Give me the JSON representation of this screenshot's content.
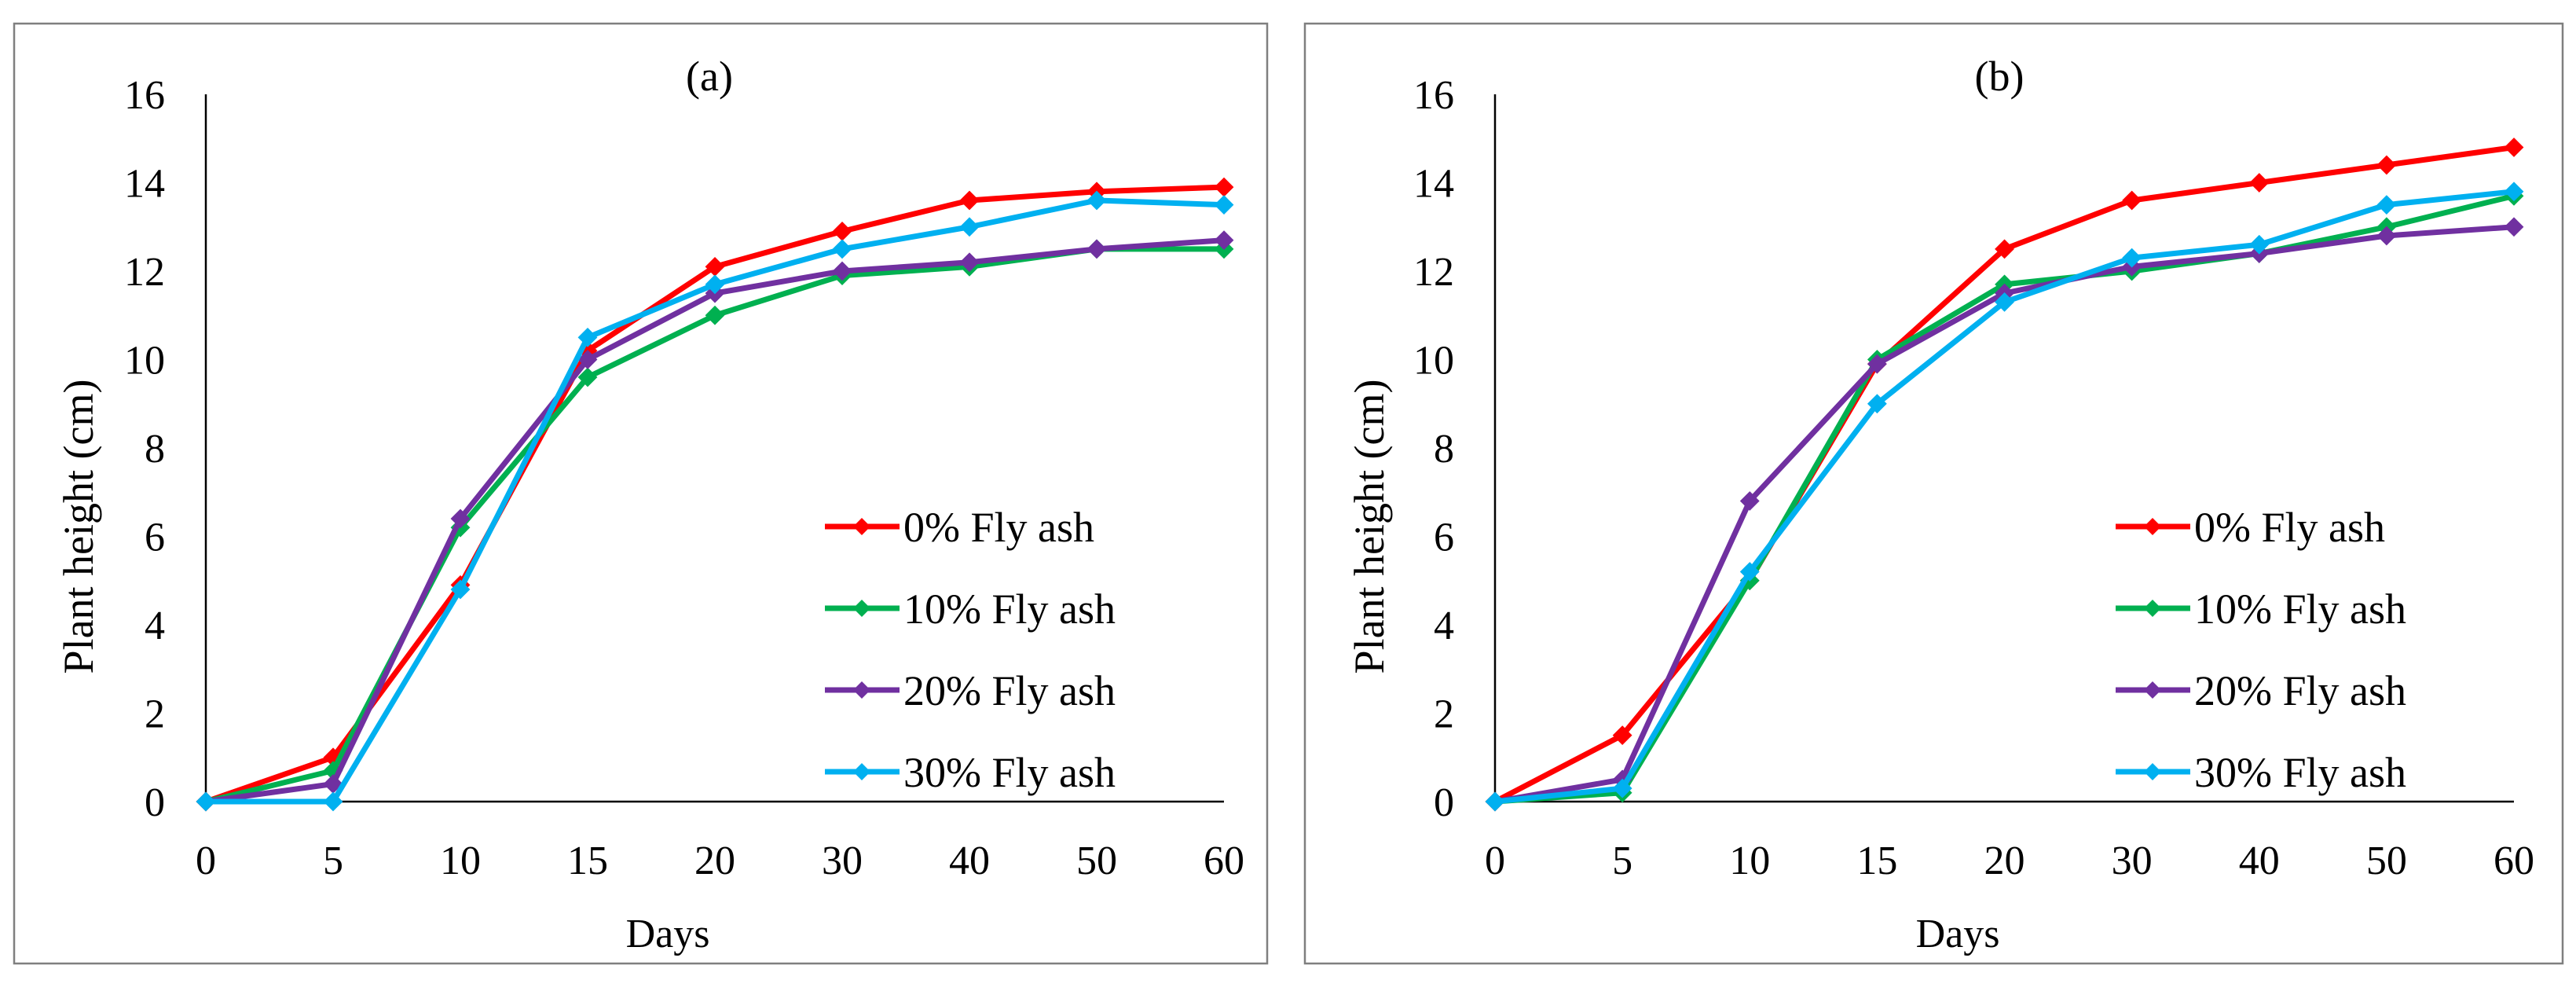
{
  "figure": {
    "panels": [
      {
        "label": "(a)"
      },
      {
        "label": "(b)"
      }
    ]
  },
  "chart_data": [
    {
      "type": "line",
      "title": "(a)",
      "xlabel": "Days",
      "ylabel": "Plant height (cm)",
      "categories": [
        "0",
        "5",
        "10",
        "15",
        "20",
        "30",
        "40",
        "50",
        "60"
      ],
      "ylim": [
        0,
        16
      ],
      "yticks": [
        0,
        2,
        4,
        6,
        8,
        10,
        12,
        14,
        16
      ],
      "grid": false,
      "legend_position": "bottom-right",
      "marker": "diamond",
      "series": [
        {
          "name": "0% Fly ash",
          "color": "#ff0000",
          "values": [
            0,
            1.0,
            4.9,
            10.2,
            12.1,
            12.9,
            13.6,
            13.8,
            13.9
          ]
        },
        {
          "name": "10% Fly ash",
          "color": "#00b050",
          "values": [
            0,
            0.7,
            6.2,
            9.6,
            11.0,
            11.9,
            12.1,
            12.5,
            12.5
          ]
        },
        {
          "name": "20% Fly ash",
          "color": "#7030a0",
          "values": [
            0,
            0.4,
            6.4,
            10.0,
            11.5,
            12.0,
            12.2,
            12.5,
            12.7
          ]
        },
        {
          "name": "30% Fly ash",
          "color": "#00b0f0",
          "values": [
            0,
            0.0,
            4.8,
            10.5,
            11.7,
            12.5,
            13.0,
            13.6,
            13.5
          ]
        }
      ]
    },
    {
      "type": "line",
      "title": "(b)",
      "xlabel": "Days",
      "ylabel": "Plant height (cm)",
      "categories": [
        "0",
        "5",
        "10",
        "15",
        "20",
        "30",
        "40",
        "50",
        "60"
      ],
      "ylim": [
        0,
        16
      ],
      "yticks": [
        0,
        2,
        4,
        6,
        8,
        10,
        12,
        14,
        16
      ],
      "grid": false,
      "legend_position": "bottom-right",
      "marker": "diamond",
      "series": [
        {
          "name": "0% Fly ash",
          "color": "#ff0000",
          "values": [
            0,
            1.5,
            5.0,
            9.9,
            12.5,
            13.6,
            14.0,
            14.4,
            14.8
          ]
        },
        {
          "name": "10% Fly ash",
          "color": "#00b050",
          "values": [
            0,
            0.2,
            5.0,
            10.0,
            11.7,
            12.0,
            12.4,
            13.0,
            13.7
          ]
        },
        {
          "name": "20% Fly ash",
          "color": "#7030a0",
          "values": [
            0,
            0.5,
            6.8,
            9.9,
            11.5,
            12.1,
            12.4,
            12.8,
            13.0
          ]
        },
        {
          "name": "30% Fly ash",
          "color": "#00b0f0",
          "values": [
            0,
            0.3,
            5.2,
            9.0,
            11.3,
            12.3,
            12.6,
            13.5,
            13.8
          ]
        }
      ]
    }
  ]
}
